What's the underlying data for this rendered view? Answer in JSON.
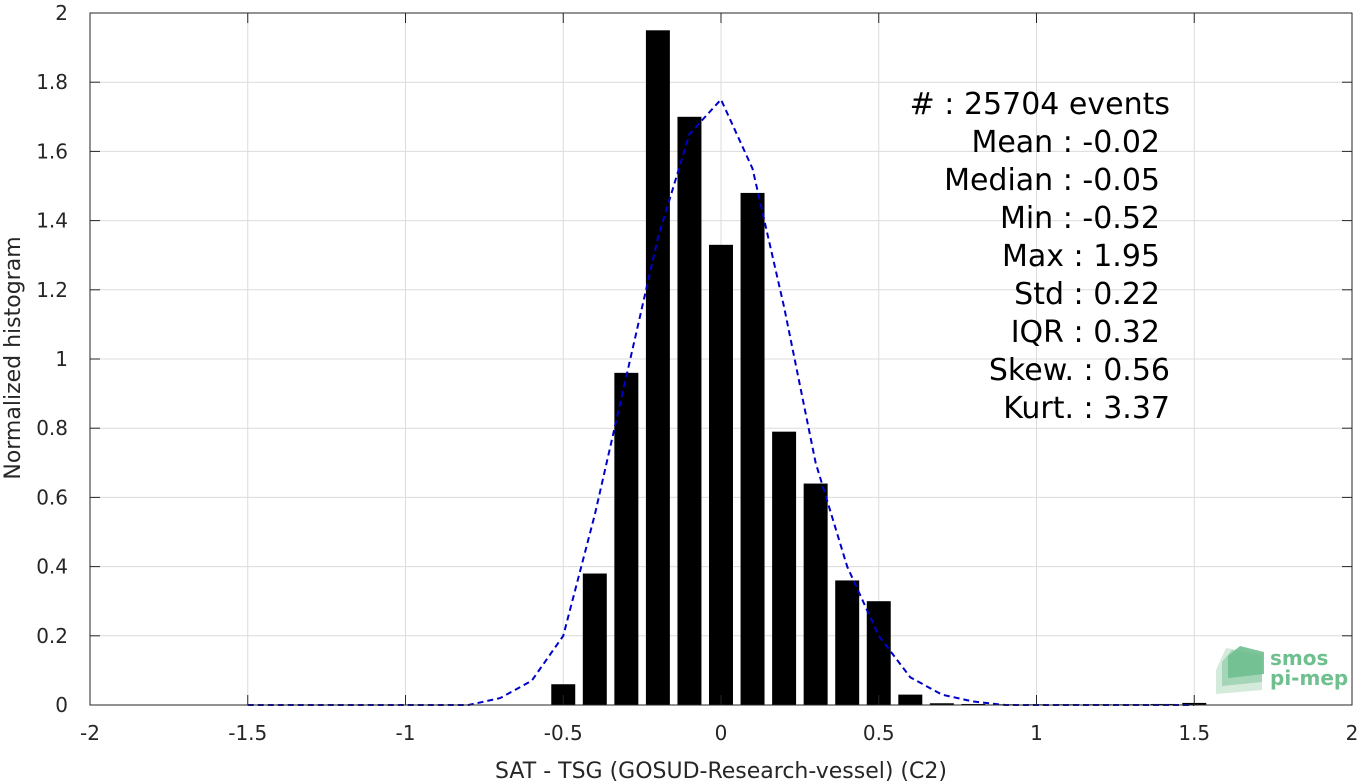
{
  "chart_data": {
    "type": "bar",
    "title": "",
    "xlabel": "SAT - TSG (GOSUD-Research-vessel) (C2)",
    "ylabel": "Normalized histogram",
    "xlim": [
      -2,
      2
    ],
    "ylim": [
      0,
      2
    ],
    "xticks": [
      -2,
      -1.5,
      -1,
      -0.5,
      0,
      0.5,
      1,
      1.5,
      2
    ],
    "yticks": [
      0,
      0.2,
      0.4,
      0.6,
      0.8,
      1,
      1.2,
      1.4,
      1.6,
      1.8,
      2
    ],
    "xtick_labels": [
      "-2",
      "-1.5",
      "-1",
      "-0.5",
      "0",
      "0.5",
      "1",
      "1.5",
      "2"
    ],
    "ytick_labels": [
      "0",
      "0.2",
      "0.4",
      "0.6",
      "0.8",
      "1",
      "1.2",
      "1.4",
      "1.6",
      "1.8",
      "2"
    ],
    "grid": true,
    "bar_color": "#000000",
    "bin_width": 0.1,
    "bars": {
      "x": [
        -0.5,
        -0.4,
        -0.3,
        -0.2,
        -0.1,
        0.0,
        0.1,
        0.2,
        0.3,
        0.4,
        0.5,
        0.6,
        0.7,
        0.8,
        0.9,
        1.0,
        1.1,
        1.2,
        1.3,
        1.4,
        1.5
      ],
      "y": [
        0.06,
        0.38,
        0.96,
        1.95,
        1.7,
        1.33,
        1.48,
        0.79,
        0.64,
        0.36,
        0.3,
        0.03,
        0.005,
        0.003,
        0.002,
        0.002,
        0.002,
        0.002,
        0.002,
        0.003,
        0.006
      ]
    },
    "fit_curve": {
      "style": "dashed",
      "color": "#0000cc",
      "x": [
        -1.5,
        -1.4,
        -1.3,
        -1.2,
        -1.1,
        -1.0,
        -0.9,
        -0.8,
        -0.7,
        -0.6,
        -0.5,
        -0.4,
        -0.3,
        -0.2,
        -0.1,
        0.0,
        0.1,
        0.2,
        0.3,
        0.4,
        0.5,
        0.6,
        0.7,
        0.8,
        0.9,
        1.0,
        1.1,
        1.2,
        1.3,
        1.4,
        1.5
      ],
      "y": [
        0.0,
        0.0,
        0.0,
        0.0,
        0.0,
        0.0,
        0.0,
        0.0,
        0.02,
        0.07,
        0.2,
        0.55,
        0.95,
        1.35,
        1.65,
        1.75,
        1.55,
        1.15,
        0.7,
        0.4,
        0.2,
        0.08,
        0.03,
        0.01,
        0.0,
        0.0,
        0.0,
        0.0,
        0.0,
        0.0,
        0.0
      ]
    },
    "annotations": [
      "#  : 25704 events",
      "Mean : -0.02",
      "Median : -0.05",
      "Min : -0.52",
      "Max : 1.95",
      "Std : 0.22",
      "IQR : 0.32",
      "Skew. : 0.56",
      "Kurt. : 3.37"
    ]
  },
  "logo": {
    "line1": "smos",
    "line2": "pi-mep",
    "color": "#6fbf8f"
  }
}
